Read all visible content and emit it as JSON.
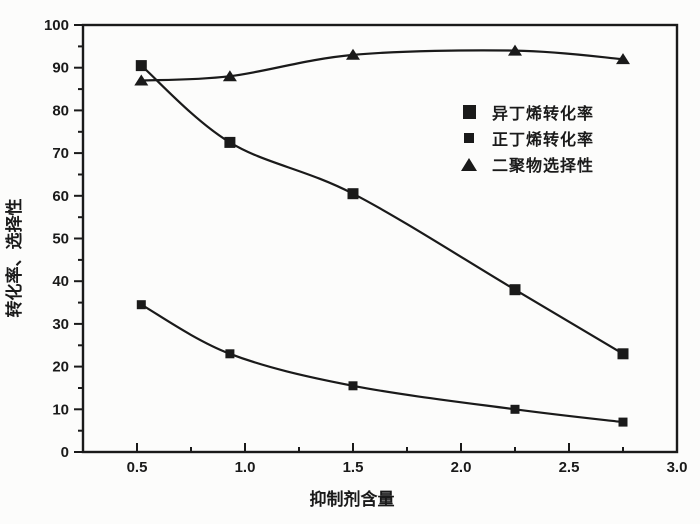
{
  "figure": {
    "background": "#fcfcfb",
    "ink_color": "#1a1a1a"
  },
  "chart_data": {
    "type": "line",
    "title": "",
    "xlabel": "抑制剂含量",
    "ylabel": "转化率、选择性",
    "xlim": [
      0.25,
      3.0
    ],
    "ylim": [
      0,
      100
    ],
    "x_ticks": [
      0.5,
      1.0,
      1.5,
      2.0,
      2.5,
      3.0
    ],
    "x_tick_labels": [
      "0.5",
      "1.0",
      "1.5",
      "2.0",
      "2.5",
      "3.0"
    ],
    "x_minor_ticks": [
      0.75,
      1.25,
      1.75,
      2.25,
      2.75
    ],
    "y_ticks": [
      0,
      10,
      20,
      30,
      40,
      50,
      60,
      70,
      80,
      90,
      100
    ],
    "y_tick_labels": [
      "0",
      "10",
      "20",
      "30",
      "40",
      "50",
      "60",
      "70",
      "80",
      "90",
      "100"
    ],
    "y_minor_ticks": [
      5,
      15,
      25,
      35,
      45,
      55,
      65,
      75,
      85,
      95
    ],
    "grid": false,
    "legend_position": "inside upper right, no border",
    "x": [
      0.52,
      0.93,
      1.5,
      2.25,
      2.75
    ],
    "series": [
      {
        "name": "异丁烯转化率",
        "marker": "square-large",
        "values": [
          90.5,
          72.5,
          60.5,
          38,
          23
        ]
      },
      {
        "name": "正丁烯转化率",
        "marker": "square-small",
        "values": [
          34.5,
          23,
          15.5,
          10,
          7
        ]
      },
      {
        "name": "二聚物选择性",
        "marker": "triangle",
        "values": [
          87,
          88,
          93,
          94,
          92
        ]
      }
    ]
  }
}
